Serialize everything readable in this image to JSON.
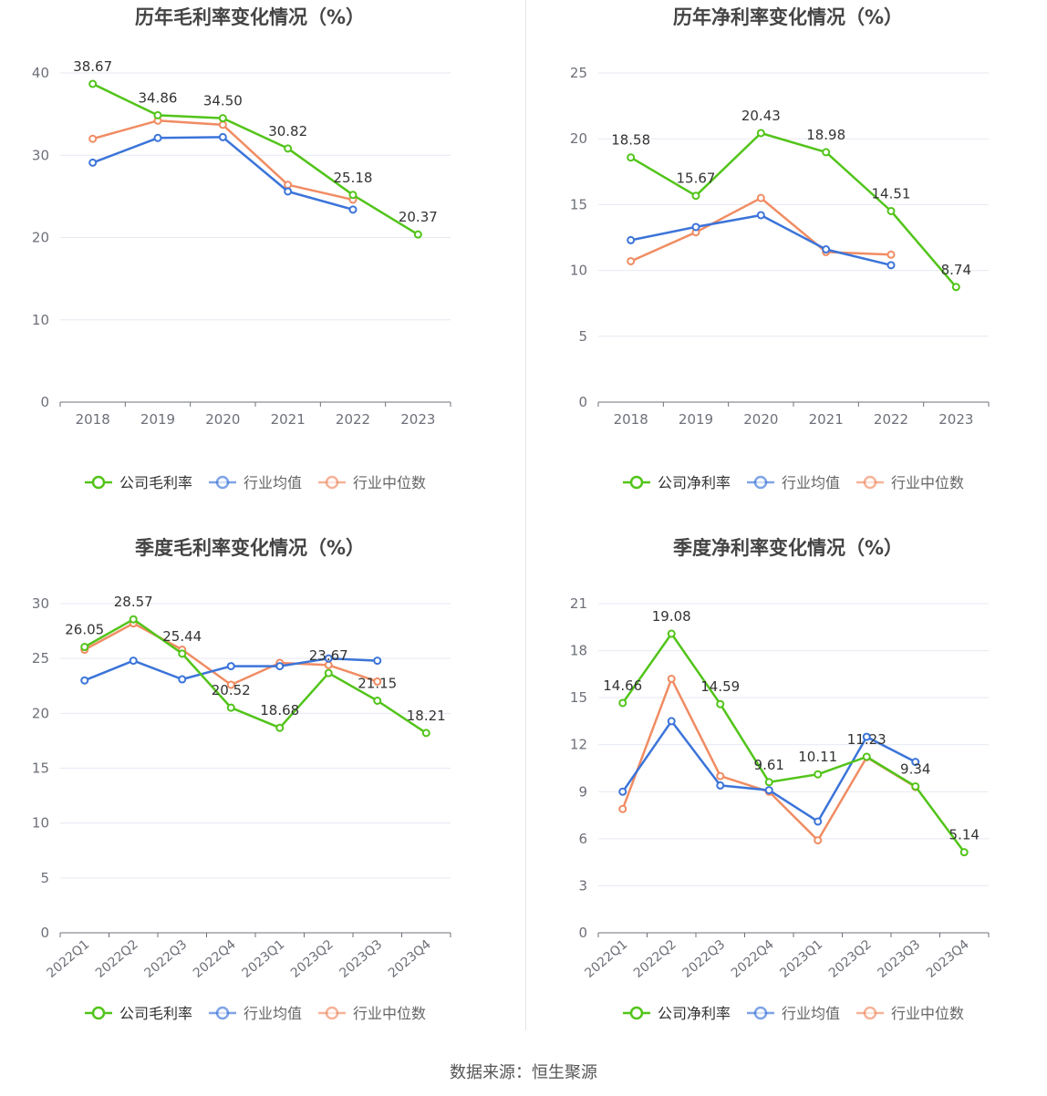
{
  "colors": {
    "company": "#52c41a",
    "industry_avg": "#3b74d9",
    "industry_median": "#f08c63",
    "grid": "#e6e9f2",
    "axis": "#6e7079",
    "label": "#333333",
    "title": "#444444"
  },
  "source": "数据来源：恒生聚源",
  "chart_data": [
    {
      "type": "line",
      "title": "历年毛利率变化情况（%）",
      "categories": [
        "2018",
        "2019",
        "2020",
        "2021",
        "2022",
        "2023"
      ],
      "ylim": [
        0,
        40
      ],
      "yticks": [
        0,
        10,
        20,
        30,
        40
      ],
      "rotate_x": false,
      "grid": true,
      "legend_position": "bottom",
      "series": [
        {
          "name": "公司毛利率",
          "values": [
            38.67,
            34.86,
            34.5,
            30.82,
            25.18,
            20.37
          ],
          "labels": [
            "38.67",
            "34.86",
            "34.50",
            "30.82",
            "25.18",
            "20.37"
          ]
        },
        {
          "name": "行业均值",
          "values": [
            29.1,
            32.1,
            32.2,
            25.6,
            23.4,
            null
          ]
        },
        {
          "name": "行业中位数",
          "values": [
            32.0,
            34.2,
            33.7,
            26.4,
            24.6,
            null
          ]
        }
      ]
    },
    {
      "type": "line",
      "title": "历年净利率变化情况（%）",
      "categories": [
        "2018",
        "2019",
        "2020",
        "2021",
        "2022",
        "2023"
      ],
      "ylim": [
        0,
        25
      ],
      "yticks": [
        0,
        5,
        10,
        15,
        20,
        25
      ],
      "rotate_x": false,
      "grid": true,
      "legend_position": "bottom",
      "series": [
        {
          "name": "公司净利率",
          "values": [
            18.58,
            15.67,
            20.43,
            18.98,
            14.51,
            8.74
          ],
          "labels": [
            "18.58",
            "15.67",
            "20.43",
            "18.98",
            "14.51",
            "8.74"
          ]
        },
        {
          "name": "行业均值",
          "values": [
            12.3,
            13.3,
            14.2,
            11.6,
            10.4,
            null
          ]
        },
        {
          "name": "行业中位数",
          "values": [
            10.7,
            12.9,
            15.5,
            11.4,
            11.2,
            null
          ]
        }
      ]
    },
    {
      "type": "line",
      "title": "季度毛利率变化情况（%）",
      "categories": [
        "2022Q1",
        "2022Q2",
        "2022Q3",
        "2022Q4",
        "2023Q1",
        "2023Q2",
        "2023Q3",
        "2023Q4"
      ],
      "ylim": [
        0,
        30
      ],
      "yticks": [
        0,
        5,
        10,
        15,
        20,
        25,
        30
      ],
      "rotate_x": true,
      "grid": true,
      "legend_position": "bottom",
      "series": [
        {
          "name": "公司毛利率",
          "values": [
            26.05,
            28.57,
            25.44,
            20.52,
            18.68,
            23.67,
            21.15,
            18.21
          ],
          "labels": [
            "26.05",
            "28.57",
            "25.44",
            "20.52",
            "18.68",
            "23.67",
            "21.15",
            "18.21"
          ]
        },
        {
          "name": "行业均值",
          "values": [
            23.0,
            24.8,
            23.1,
            24.3,
            24.3,
            25.0,
            24.8,
            null
          ]
        },
        {
          "name": "行业中位数",
          "values": [
            25.8,
            28.2,
            25.8,
            22.6,
            24.6,
            24.4,
            22.9,
            null
          ]
        }
      ]
    },
    {
      "type": "line",
      "title": "季度净利率变化情况（%）",
      "categories": [
        "2022Q1",
        "2022Q2",
        "2022Q3",
        "2022Q4",
        "2023Q1",
        "2023Q2",
        "2023Q3",
        "2023Q4"
      ],
      "ylim": [
        0,
        21
      ],
      "yticks": [
        0,
        3,
        6,
        9,
        12,
        15,
        18,
        21
      ],
      "rotate_x": true,
      "grid": true,
      "legend_position": "bottom",
      "series": [
        {
          "name": "公司净利率",
          "values": [
            14.66,
            19.08,
            14.59,
            9.61,
            10.11,
            11.23,
            9.34,
            5.14
          ],
          "labels": [
            "14.66",
            "19.08",
            "14.59",
            "9.61",
            "10.11",
            "11.23",
            "9.34",
            "5.14"
          ]
        },
        {
          "name": "行业均值",
          "values": [
            9.0,
            13.5,
            9.4,
            9.1,
            7.1,
            12.5,
            10.9,
            null
          ]
        },
        {
          "name": "行业中位数",
          "values": [
            7.9,
            16.2,
            10.0,
            9.0,
            5.9,
            11.2,
            9.3,
            null
          ]
        }
      ]
    }
  ]
}
